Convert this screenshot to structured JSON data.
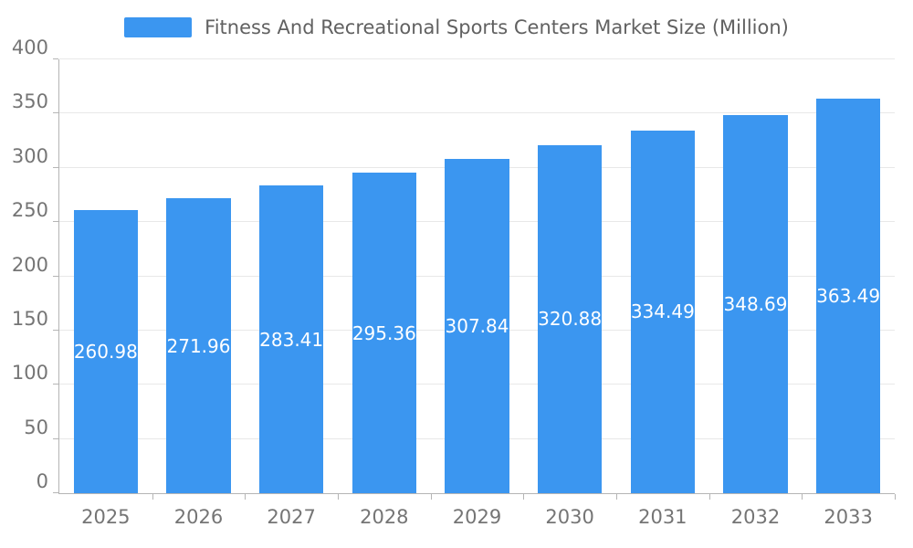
{
  "chart_data": {
    "type": "bar",
    "title": "Fitness And Recreational Sports Centers Market Size (Million)",
    "categories": [
      "2025",
      "2026",
      "2027",
      "2028",
      "2029",
      "2030",
      "2031",
      "2032",
      "2033"
    ],
    "values": [
      260.98,
      271.96,
      283.41,
      295.36,
      307.84,
      320.88,
      334.49,
      348.69,
      363.49
    ],
    "value_labels": [
      "260.98",
      "271.96",
      "283.41",
      "295.36",
      "307.84",
      "320.88",
      "334.49",
      "348.69",
      "363.49"
    ],
    "xlabel": "",
    "ylabel": "",
    "ylim": [
      0,
      400
    ],
    "ytick_interval": 50,
    "ytick_labels": [
      "0",
      "50",
      "100",
      "150",
      "200",
      "250",
      "300",
      "350",
      "400"
    ],
    "grid": true,
    "legend_position": "top",
    "bar_color": "#3b96f0",
    "bar_label_color": "#ffffff",
    "grid_color": "#e8e8e8",
    "axis_color": "#b5b5b5",
    "tick_text_color": "#757575",
    "title_color": "#616161",
    "background_color": "#ffffff"
  }
}
